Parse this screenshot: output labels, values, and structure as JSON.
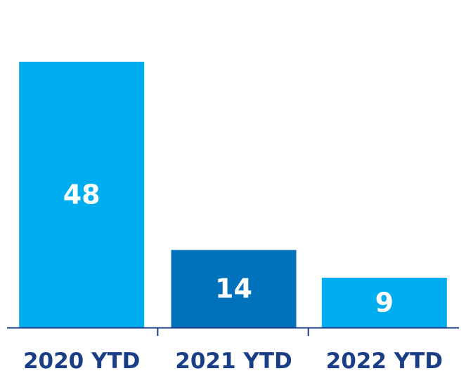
{
  "chart_data": {
    "type": "bar",
    "categories": [
      "2020 YTD",
      "2021 YTD",
      "2022 YTD"
    ],
    "values": [
      48,
      14,
      9
    ],
    "data_labels": [
      "48",
      "14",
      "9"
    ],
    "title": "",
    "xlabel": "",
    "ylabel": "",
    "ylim": [
      0,
      48
    ],
    "grid": false,
    "legend": "none",
    "colors": [
      "#00aeef",
      "#0072bc",
      "#00aeef"
    ],
    "axis_color": "#1a3e86",
    "label_color": "#1a3e86",
    "value_label_color": "#ffffff"
  }
}
